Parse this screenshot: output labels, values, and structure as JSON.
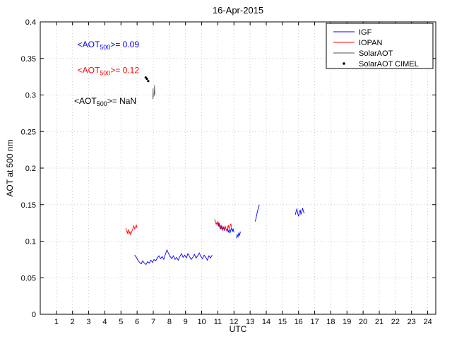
{
  "chart_data": {
    "type": "line",
    "title": "16-Apr-2015",
    "xlabel": "UTC",
    "ylabel": "AOT at 500 nm",
    "xlim": [
      0,
      24.5
    ],
    "ylim": [
      0,
      0.4
    ],
    "xticks": [
      1,
      2,
      3,
      4,
      5,
      6,
      7,
      8,
      9,
      10,
      11,
      12,
      13,
      14,
      15,
      16,
      17,
      18,
      19,
      20,
      21,
      22,
      23,
      24
    ],
    "yticks": [
      0,
      0.05,
      0.1,
      0.15,
      0.2,
      0.25,
      0.3,
      0.35,
      0.4
    ],
    "grid": true,
    "legend": {
      "position": "top-right",
      "entries": [
        {
          "label": "IGF",
          "color": "#0000ff",
          "marker": "line"
        },
        {
          "label": "IOPAN",
          "color": "#ff0000",
          "marker": "line"
        },
        {
          "label": "SolarAOT",
          "color": "#555555",
          "marker": "line"
        },
        {
          "label": "SolarAOT CIMEL",
          "color": "#000000",
          "marker": "dot"
        }
      ]
    },
    "series": [
      {
        "name": "IGF",
        "color": "#0000ff",
        "marker": "line",
        "segments": [
          [
            [
              5.85,
              0.081
            ],
            [
              5.95,
              0.078
            ],
            [
              6.05,
              0.074
            ],
            [
              6.15,
              0.071
            ],
            [
              6.25,
              0.069
            ],
            [
              6.35,
              0.073
            ],
            [
              6.45,
              0.07
            ],
            [
              6.55,
              0.068
            ],
            [
              6.65,
              0.072
            ],
            [
              6.75,
              0.07
            ],
            [
              6.85,
              0.074
            ],
            [
              6.95,
              0.071
            ],
            [
              7.05,
              0.075
            ],
            [
              7.15,
              0.073
            ],
            [
              7.25,
              0.077
            ],
            [
              7.35,
              0.08
            ],
            [
              7.45,
              0.076
            ],
            [
              7.55,
              0.079
            ],
            [
              7.65,
              0.075
            ],
            [
              7.75,
              0.082
            ],
            [
              7.85,
              0.088
            ],
            [
              7.95,
              0.083
            ],
            [
              8.05,
              0.079
            ],
            [
              8.15,
              0.076
            ],
            [
              8.25,
              0.08
            ],
            [
              8.35,
              0.075
            ],
            [
              8.45,
              0.078
            ],
            [
              8.55,
              0.074
            ],
            [
              8.65,
              0.079
            ],
            [
              8.75,
              0.083
            ],
            [
              8.85,
              0.078
            ],
            [
              8.95,
              0.081
            ],
            [
              9.05,
              0.077
            ],
            [
              9.15,
              0.083
            ],
            [
              9.25,
              0.079
            ],
            [
              9.35,
              0.075
            ],
            [
              9.45,
              0.078
            ],
            [
              9.55,
              0.082
            ],
            [
              9.65,
              0.077
            ],
            [
              9.75,
              0.08
            ],
            [
              9.85,
              0.084
            ],
            [
              9.95,
              0.079
            ],
            [
              10.05,
              0.076
            ],
            [
              10.15,
              0.081
            ],
            [
              10.25,
              0.078
            ],
            [
              10.35,
              0.074
            ],
            [
              10.45,
              0.08
            ],
            [
              10.55,
              0.077
            ],
            [
              10.65,
              0.081
            ]
          ],
          [
            [
              10.95,
              0.127
            ],
            [
              11.0,
              0.124
            ],
            [
              11.05,
              0.121
            ],
            [
              11.1,
              0.124
            ],
            [
              11.15,
              0.119
            ],
            [
              11.2,
              0.117
            ],
            [
              11.25,
              0.121
            ],
            [
              11.3,
              0.116
            ],
            [
              11.35,
              0.119
            ],
            [
              11.4,
              0.115
            ],
            [
              11.45,
              0.118
            ]
          ],
          [
            [
              11.55,
              0.114
            ],
            [
              11.6,
              0.118
            ],
            [
              11.65,
              0.112
            ],
            [
              11.7,
              0.116
            ],
            [
              11.75,
              0.111
            ],
            [
              11.8,
              0.115
            ],
            [
              11.85,
              0.118
            ],
            [
              11.9,
              0.113
            ],
            [
              11.95,
              0.117
            ],
            [
              12.0,
              0.112
            ]
          ],
          [
            [
              12.15,
              0.104
            ],
            [
              12.2,
              0.109
            ],
            [
              12.25,
              0.106
            ],
            [
              12.3,
              0.111
            ],
            [
              12.35,
              0.108
            ],
            [
              12.4,
              0.113
            ]
          ],
          [
            [
              13.32,
              0.127
            ],
            [
              13.37,
              0.132
            ],
            [
              13.42,
              0.137
            ],
            [
              13.47,
              0.142
            ],
            [
              13.52,
              0.146
            ],
            [
              13.57,
              0.15
            ]
          ],
          [
            [
              15.8,
              0.136
            ],
            [
              15.85,
              0.141
            ],
            [
              15.9,
              0.144
            ],
            [
              15.95,
              0.138
            ],
            [
              16.0,
              0.134
            ],
            [
              16.05,
              0.139
            ],
            [
              16.1,
              0.143
            ],
            [
              16.15,
              0.137
            ],
            [
              16.2,
              0.14
            ],
            [
              16.25,
              0.145
            ],
            [
              16.3,
              0.141
            ],
            [
              16.35,
              0.138
            ]
          ]
        ]
      },
      {
        "name": "IOPAN",
        "color": "#ff0000",
        "marker": "line",
        "segments": [
          [
            [
              5.3,
              0.118
            ],
            [
              5.35,
              0.114
            ],
            [
              5.4,
              0.111
            ],
            [
              5.45,
              0.116
            ],
            [
              5.5,
              0.11
            ],
            [
              5.55,
              0.113
            ],
            [
              5.6,
              0.109
            ],
            [
              5.65,
              0.112
            ],
            [
              5.7,
              0.115
            ],
            [
              5.75,
              0.118
            ],
            [
              5.8,
              0.121
            ],
            [
              5.85,
              0.117
            ],
            [
              5.9,
              0.119
            ],
            [
              5.95,
              0.122
            ],
            [
              6.0,
              0.118
            ]
          ],
          [
            [
              10.8,
              0.13
            ],
            [
              10.85,
              0.127
            ],
            [
              10.9,
              0.123
            ],
            [
              10.95,
              0.126
            ],
            [
              11.0,
              0.122
            ],
            [
              11.05,
              0.125
            ],
            [
              11.1,
              0.12
            ],
            [
              11.15,
              0.117
            ],
            [
              11.2,
              0.122
            ],
            [
              11.25,
              0.118
            ],
            [
              11.3,
              0.115
            ],
            [
              11.35,
              0.12
            ],
            [
              11.4,
              0.116
            ],
            [
              11.45,
              0.121
            ],
            [
              11.5,
              0.117
            ],
            [
              11.55,
              0.114
            ],
            [
              11.6,
              0.118
            ],
            [
              11.65,
              0.122
            ],
            [
              11.7,
              0.117
            ],
            [
              11.75,
              0.12
            ],
            [
              11.8,
              0.124
            ],
            [
              11.85,
              0.119
            ]
          ]
        ]
      },
      {
        "name": "SolarAOT",
        "color": "#555555",
        "marker": "line",
        "segments": [
          [
            [
              6.97,
              0.294
            ],
            [
              6.99,
              0.309
            ],
            [
              7.01,
              0.297
            ]
          ],
          [
            [
              7.06,
              0.299
            ],
            [
              7.08,
              0.313
            ],
            [
              7.1,
              0.301
            ]
          ]
        ]
      },
      {
        "name": "SolarAOT CIMEL",
        "color": "#000000",
        "marker": "dot",
        "points": [
          [
            6.53,
            0.324
          ],
          [
            6.61,
            0.322
          ],
          [
            6.69,
            0.319
          ]
        ]
      }
    ],
    "annotations": [
      {
        "prefix": "<AOT",
        "sub": "500",
        "suffix": ">= 0.09",
        "color": "#0000ff",
        "x": 2.3,
        "y": 0.365
      },
      {
        "prefix": "<AOT",
        "sub": "500",
        "suffix": ">= 0.12",
        "color": "#ff0000",
        "x": 2.3,
        "y": 0.33
      },
      {
        "prefix": "<AOT",
        "sub": "500",
        "suffix": ">=  NaN",
        "color": "#000000",
        "x": 2.1,
        "y": 0.288
      }
    ]
  }
}
